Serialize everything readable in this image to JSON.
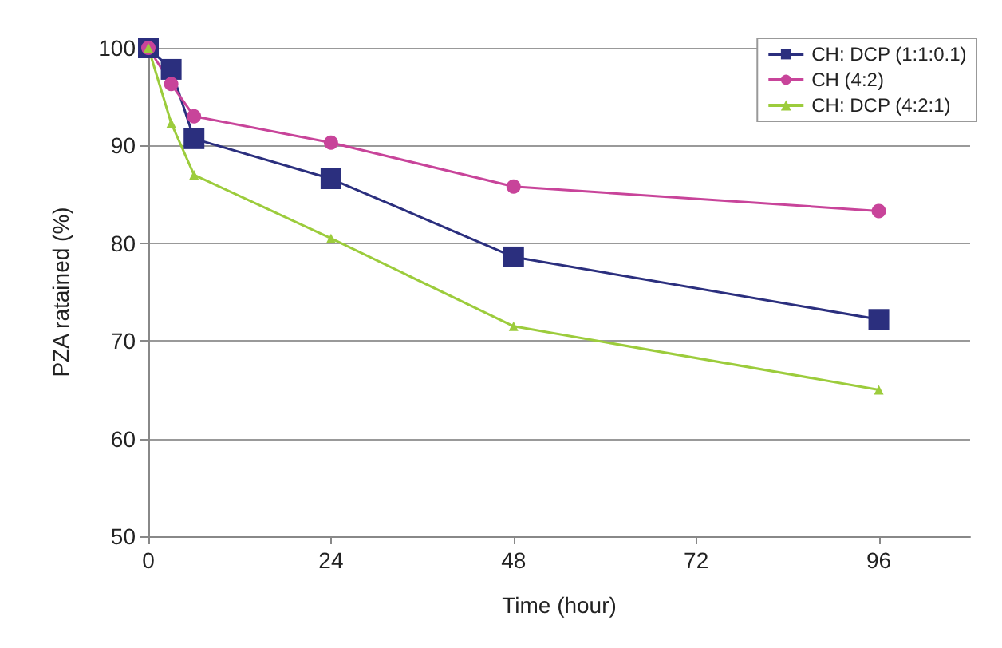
{
  "chart_data": {
    "type": "line",
    "xlabel": "Time (hour)",
    "ylabel": "PZA ratained (%)",
    "x": [
      0,
      3,
      6,
      24,
      48,
      96
    ],
    "series": [
      {
        "name": "CH: DCP (1:1:0.1)",
        "color": "#2b2f7e",
        "marker": "square",
        "values": [
          100,
          97.8,
          90.7,
          86.6,
          78.6,
          72.2
        ]
      },
      {
        "name": "CH (4:2)",
        "color": "#c8449a",
        "marker": "circle",
        "values": [
          100,
          96.3,
          93,
          90.3,
          85.8,
          83.3
        ]
      },
      {
        "name": "CH: DCP (4:2:1)",
        "color": "#9ccc3c",
        "marker": "triangle",
        "values": [
          100,
          92.3,
          87,
          80.5,
          71.5,
          65
        ]
      }
    ],
    "xlim": [
      0,
      108
    ],
    "xticks": [
      0,
      24,
      48,
      72,
      96
    ],
    "ylim": [
      50,
      100
    ],
    "yticks": [
      50,
      60,
      70,
      80,
      90,
      100
    ],
    "grid": "y",
    "legend": "top right"
  }
}
